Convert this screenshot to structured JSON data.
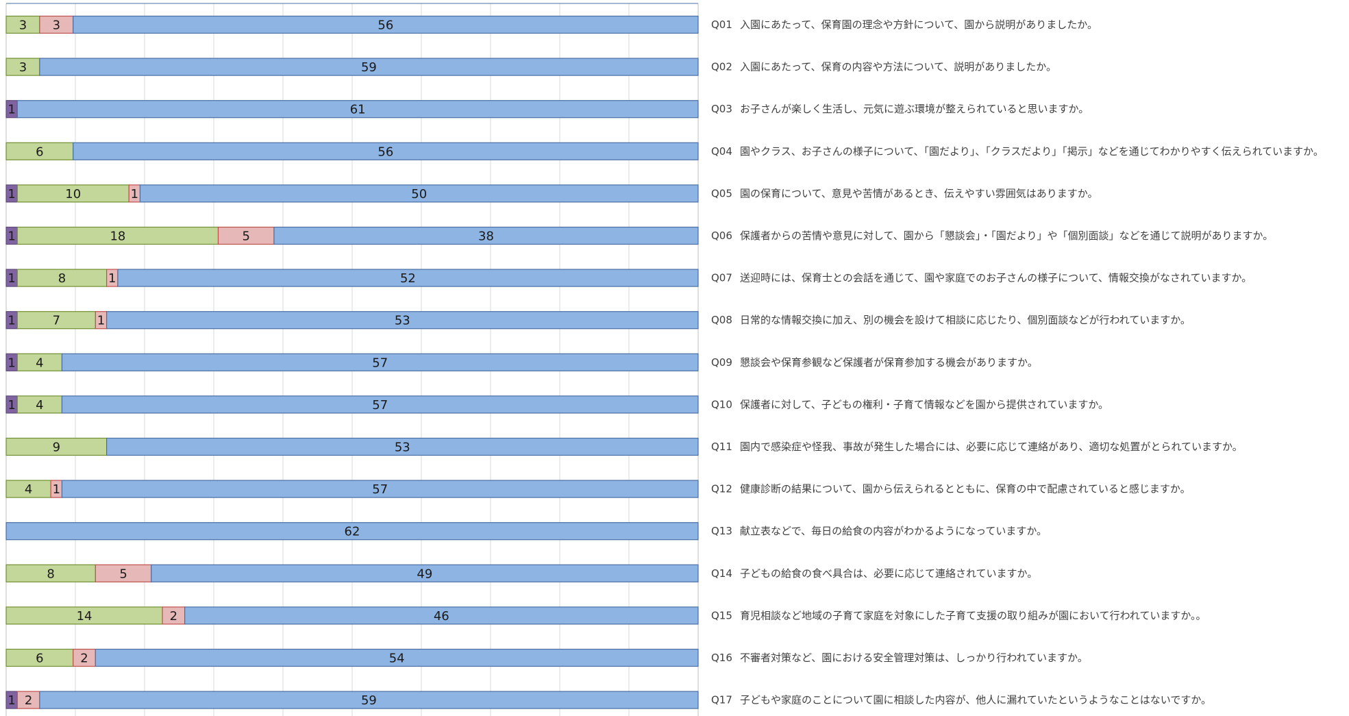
{
  "chart_data": {
    "type": "bar",
    "orientation": "horizontal",
    "stacked": true,
    "xlim": [
      0,
      62
    ],
    "grid": true,
    "legend": "none",
    "colors": [
      "#8064a2",
      "#c4d79b",
      "#e6b8b7",
      "#8db4e2"
    ],
    "borders": [
      "#5f497a",
      "#6f8f2f",
      "#c0504d",
      "#4a6fa5"
    ],
    "categories": [
      "Q01",
      "Q02",
      "Q03",
      "Q04",
      "Q05",
      "Q06",
      "Q07",
      "Q08",
      "Q09",
      "Q10",
      "Q11",
      "Q12",
      "Q13",
      "Q14",
      "Q15",
      "Q16",
      "Q17"
    ],
    "questions": [
      "入園にあたって、保育園の理念や方針について、園から説明がありましたか。",
      "入園にあたって、保育の内容や方法について、説明がありましたか。",
      "お子さんが楽しく生活し、元気に遊ぶ環境が整えられていると思いますか。",
      "園やクラス、お子さんの様子について、「園だより」、「クラスだより」「掲示」などを通じてわかりやすく伝えられていますか。",
      "園の保育について、意見や苦情があるとき、伝えやすい雰囲気はありますか。",
      "保護者からの苦情や意見に対して、園から「懇談会」・「園だより」や「個別面談」などを通じて説明がありますか。",
      "送迎時には、保育士との会話を通じて、園や家庭でのお子さんの様子について、情報交換がなされていますか。",
      "日常的な情報交換に加え、別の機会を設けて相談に応じたり、個別面談などが行われていますか。",
      "懇談会や保育参観など保護者が保育参加する機会がありますか。",
      "保護者に対して、子どもの権利・子育て情報などを園から提供されていますか。",
      "園内で感染症や怪我、事故が発生した場合には、必要に応じて連絡があり、適切な処置がとられていますか。",
      "健康診断の結果について、園から伝えられるとともに、保育の中で配慮されていると感じますか。",
      "献立表などで、毎日の給食の内容がわかるようになっていますか。",
      "子どもの給食の食べ具合は、必要に応じて連絡されていますか。",
      "育児相談など地域の子育て家庭を対象にした子育て支援の取り組みが園において行われていますか。。",
      "不審者対策など、園における安全管理対策は、しっかり行われていますか。",
      "子どもや家庭のことについて園に相談した内容が、他人に漏れていたというようなことはないですか。"
    ],
    "series": [
      {
        "values": [
          0,
          0,
          1,
          0,
          1,
          1,
          1,
          1,
          1,
          1,
          0,
          0,
          0,
          0,
          0,
          0,
          1
        ]
      },
      {
        "values": [
          3,
          3,
          0,
          6,
          10,
          18,
          8,
          7,
          4,
          4,
          9,
          4,
          0,
          8,
          14,
          6,
          0
        ]
      },
      {
        "values": [
          3,
          0,
          0,
          0,
          1,
          5,
          1,
          1,
          0,
          0,
          0,
          1,
          0,
          5,
          2,
          2,
          2
        ]
      },
      {
        "values": [
          56,
          59,
          61,
          56,
          50,
          38,
          52,
          53,
          57,
          57,
          53,
          57,
          62,
          49,
          46,
          54,
          59
        ]
      }
    ]
  }
}
